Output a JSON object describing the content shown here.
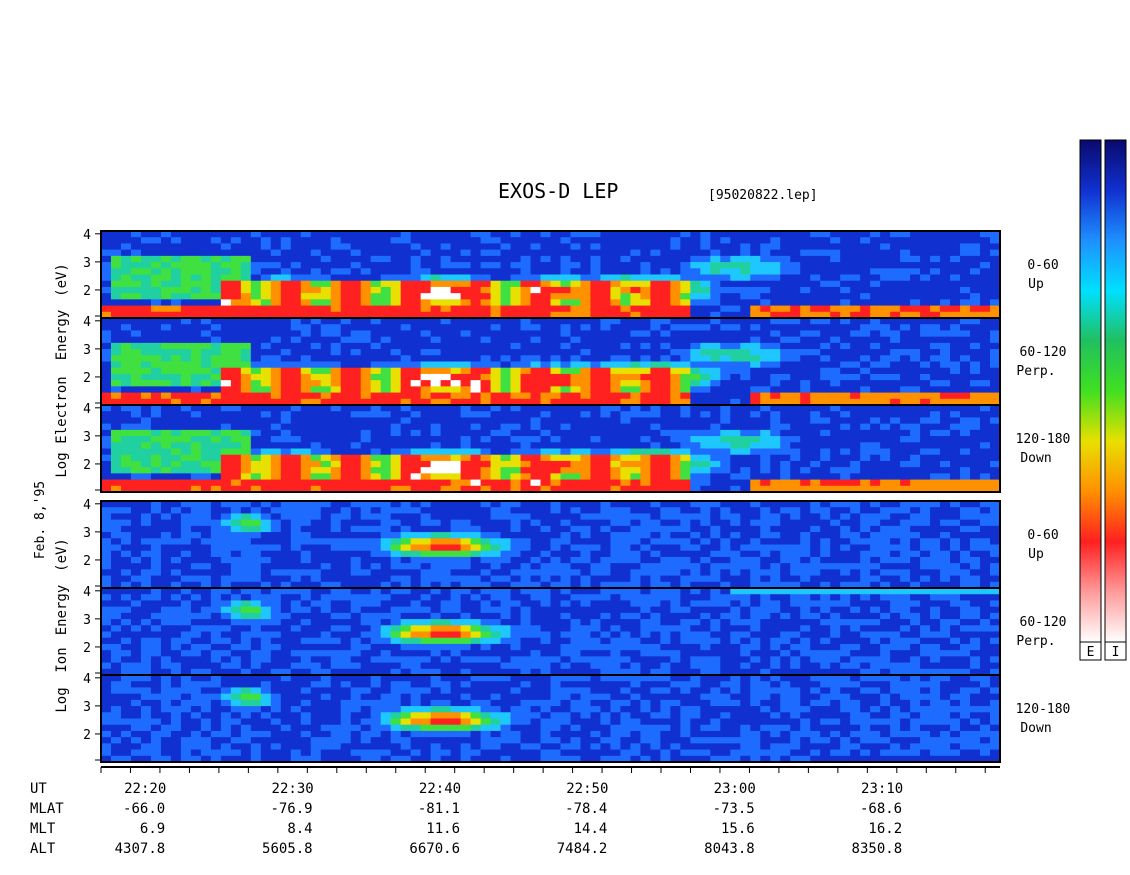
{
  "header": {
    "title": "EXOS-D LEP",
    "file": "[95020822.lep]"
  },
  "chart_data": {
    "type": "heatmap",
    "date_label": "Feb. 8,'95",
    "groups": [
      {
        "species": "Electron",
        "ylabel_parts": [
          "Log",
          "Electron",
          "Energy",
          "(eV)"
        ],
        "panels": [
          {
            "label_line1": "0-60",
            "label_line2": "Up",
            "yticks": [
              "4",
              "3",
              "2"
            ]
          },
          {
            "label_line1": "60-120",
            "label_line2": "Perp.",
            "yticks": [
              "4",
              "3",
              "2"
            ]
          },
          {
            "label_line1": "120-180",
            "label_line2": "Down",
            "yticks": [
              "4",
              "3",
              "2"
            ]
          }
        ]
      },
      {
        "species": "Ion",
        "ylabel_parts": [
          "Log",
          "Ion",
          "Energy",
          "(eV)"
        ],
        "panels": [
          {
            "label_line1": "0-60",
            "label_line2": "Up",
            "yticks": [
              "4",
              "3",
              "2"
            ]
          },
          {
            "label_line1": "60-120",
            "label_line2": "Perp.",
            "yticks": [
              "4",
              "3",
              "2"
            ]
          },
          {
            "label_line1": "120-180",
            "label_line2": "Down",
            "yticks": [
              "4",
              "3",
              "2"
            ]
          }
        ]
      }
    ],
    "ylim": [
      1,
      4.1
    ],
    "colorbars": [
      {
        "label": "E",
        "colors": [
          "#0a0a6e",
          "#1030d0",
          "#1e90ff",
          "#00e0ff",
          "#20c060",
          "#40e020",
          "#e8e000",
          "#ff9000",
          "#ff2020",
          "#ff9a9a",
          "#ffffff"
        ]
      },
      {
        "label": "I",
        "colors": [
          "#0a0a6e",
          "#1030d0",
          "#1e90ff",
          "#00e0ff",
          "#20c060",
          "#40e020",
          "#e8e000",
          "#ff9000",
          "#ff2020",
          "#ff9a9a",
          "#ffffff"
        ]
      }
    ],
    "intensity_colors": [
      "#1a1a9a",
      "#1030d0",
      "#1e6cff",
      "#1ec8ff",
      "#20d0a0",
      "#40e040",
      "#e8e000",
      "#ff9000",
      "#ff2020",
      "#ffffff"
    ],
    "electron_features": [
      {
        "t": 22.35,
        "e": 2.8,
        "strength": 0.45
      },
      {
        "t": 22.5,
        "e": 1.9,
        "strength": 0.8
      },
      {
        "t": 22.67,
        "e": 1.9,
        "strength": 0.98
      },
      {
        "t": 22.8,
        "e": 1.9,
        "strength": 0.85
      },
      {
        "t": 22.9,
        "e": 2.0,
        "strength": 0.8
      },
      {
        "t": 23.0,
        "e": 2.8,
        "strength": 0.45
      }
    ],
    "ion_features": [
      {
        "t": 22.45,
        "e": 3.3,
        "strength": 0.55
      },
      {
        "t": 22.67,
        "e": 2.5,
        "strength": 0.85
      },
      {
        "t": 22.88,
        "e": 2.2,
        "strength": 0.25
      }
    ],
    "x_axis": {
      "rows": [
        {
          "label": "UT",
          "values": [
            "22:20",
            "22:30",
            "22:40",
            "22:50",
            "23:00",
            "23:10"
          ]
        },
        {
          "label": "MLAT",
          "values": [
            "-66.0",
            "-76.9",
            "-81.1",
            "-78.4",
            "-73.5",
            "-68.6"
          ]
        },
        {
          "label": "MLT",
          "values": [
            "6.9",
            "8.4",
            "11.6",
            "14.4",
            "15.6",
            "16.2"
          ]
        },
        {
          "label": "ALT",
          "values": [
            "4307.8",
            "5605.8",
            "6670.6",
            "7484.2",
            "8043.8",
            "8350.8"
          ]
        }
      ],
      "tick_hours": [
        22.3333,
        22.5,
        22.6667,
        22.8333,
        23.0,
        23.1667
      ],
      "start_hour": 22.2833,
      "end_hour": 23.3
    }
  }
}
